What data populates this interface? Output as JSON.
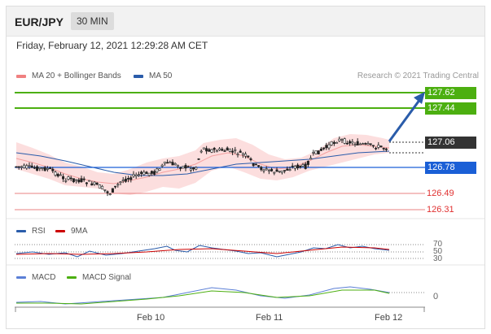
{
  "header": {
    "pair": "EUR/JPY",
    "timeframe": "30 MIN"
  },
  "datetime": "Friday, February 12, 2021 12:29:28 AM CET",
  "legend": {
    "ma20": {
      "label": "MA 20 + Bollinger Bands",
      "color": "#f08080"
    },
    "ma50": {
      "label": "MA 50",
      "color": "#2a5caa"
    }
  },
  "credit": "Research © 2021 Trading Central",
  "levels": [
    {
      "value": "127.62",
      "kind": "target",
      "color": "#4caf10"
    },
    {
      "value": "127.44",
      "kind": "target",
      "color": "#4caf10"
    },
    {
      "value": "127.06",
      "kind": "current",
      "color": "#333333"
    },
    {
      "value": "126.78",
      "kind": "pivot",
      "color": "#1a5fd6"
    },
    {
      "value": "126.49",
      "kind": "support",
      "color": "#e03030"
    },
    {
      "value": "126.31",
      "kind": "support",
      "color": "#e03030"
    }
  ],
  "rsi": {
    "legend": {
      "rsi": "RSI",
      "ma": "9MA",
      "rsi_color": "#2a5caa",
      "ma_color": "#cc0000"
    },
    "levels": [
      "70",
      "50",
      "30"
    ]
  },
  "macd": {
    "legend": {
      "macd": "MACD",
      "signal": "MACD Signal",
      "macd_color": "#5b7fd6",
      "signal_color": "#4caf10"
    },
    "zero_label": "0"
  },
  "x_axis": {
    "labels": [
      "Feb 10",
      "Feb 11",
      "Feb 12"
    ]
  }
}
